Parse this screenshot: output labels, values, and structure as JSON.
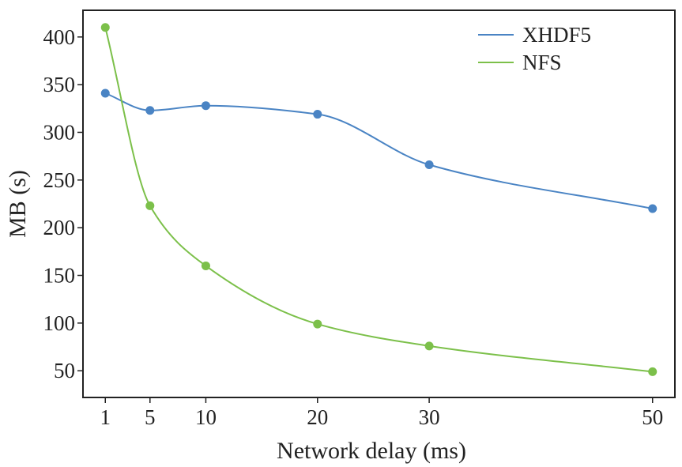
{
  "chart_data": {
    "type": "line",
    "title": "",
    "xlabel": "Network delay (ms)",
    "ylabel": "MB (s)",
    "x": [
      1,
      5,
      10,
      20,
      30,
      50
    ],
    "x_tick_labels": [
      "1",
      "5",
      "10",
      "20",
      "30",
      "50"
    ],
    "xlim": [
      -1,
      52
    ],
    "ylim": [
      22,
      428
    ],
    "y_ticks": [
      50,
      100,
      150,
      200,
      250,
      300,
      350,
      400
    ],
    "y_tick_labels": [
      "50",
      "100",
      "150",
      "200",
      "250",
      "300",
      "350",
      "400"
    ],
    "grid": false,
    "legend_position": "top-right",
    "series": [
      {
        "name": "XHDF5",
        "color": "#4a84c4",
        "values": [
          341,
          323,
          328,
          319,
          266,
          220
        ]
      },
      {
        "name": "NFS",
        "color": "#7cc04a",
        "values": [
          410,
          223,
          160,
          99,
          76,
          49
        ]
      }
    ]
  }
}
